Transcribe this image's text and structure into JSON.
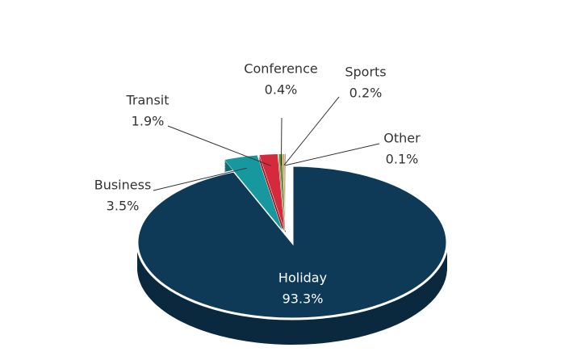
{
  "chart_data": {
    "type": "pie3d",
    "categories": [
      "Holiday",
      "Business",
      "Transit",
      "Conference",
      "Sports",
      "Other"
    ],
    "values": [
      93.3,
      3.5,
      1.9,
      0.4,
      0.2,
      0.1
    ],
    "value_labels": [
      "93.3%",
      "3.5%",
      "1.9%",
      "0.4%",
      "0.2%",
      "0.1%"
    ],
    "colors": [
      "#0e3a58",
      "#17989e",
      "#d42a3c",
      "#6b8e3a",
      "#e08a2a",
      "#4f7fb8"
    ]
  }
}
